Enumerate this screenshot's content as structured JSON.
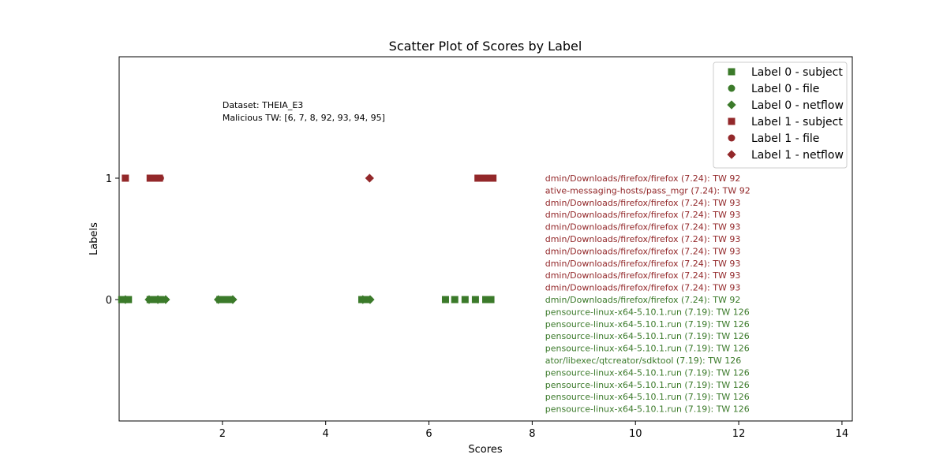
{
  "chart_data": {
    "type": "scatter",
    "title": "Scatter Plot of Scores by Label",
    "xlabel": "Scores",
    "ylabel": "Labels",
    "xlim": [
      0.0,
      14.2
    ],
    "ylim": [
      -1.0,
      2.0
    ],
    "xticks": [
      2,
      4,
      6,
      8,
      10,
      12,
      14
    ],
    "yticks": [
      0,
      1
    ],
    "grid": false,
    "legend_position": "top-right",
    "colors": {
      "label0": "#3b7a2a",
      "label1": "#93282a"
    },
    "annotations_header": [
      "Dataset: THEIA_E3",
      "Malicious TW: [6, 7, 8, 92, 93, 94, 95]"
    ],
    "series": [
      {
        "name": "Label 0 - subject",
        "marker": "square",
        "color": "#3b7a2a",
        "y": 0,
        "x": [
          0.05,
          0.12,
          0.18,
          0.6,
          0.7,
          0.8,
          1.95,
          2.05,
          2.15,
          4.7,
          4.8,
          6.32,
          6.5,
          6.7,
          6.9,
          7.1,
          7.2
        ]
      },
      {
        "name": "Label 0 - file",
        "marker": "circle",
        "color": "#3b7a2a",
        "y": 0,
        "x": [
          0.08,
          0.15,
          0.65,
          0.72,
          0.78,
          0.85,
          2.0,
          2.1,
          4.75,
          4.85
        ]
      },
      {
        "name": "Label 0 - netflow",
        "marker": "diamond",
        "color": "#3b7a2a",
        "y": 0,
        "x": [
          0.12,
          0.58,
          0.75,
          0.9,
          1.92,
          2.2,
          4.72,
          4.86
        ]
      },
      {
        "name": "Label 1 - subject",
        "marker": "square",
        "color": "#93282a",
        "y": 1,
        "x": [
          0.12,
          0.6,
          0.7,
          0.78,
          6.95,
          7.05,
          7.15,
          7.2,
          7.24
        ]
      },
      {
        "name": "Label 1 - file",
        "marker": "circle",
        "color": "#93282a",
        "y": 1,
        "x": [
          0.72,
          0.76,
          0.8,
          7.0,
          7.1
        ]
      },
      {
        "name": "Label 1 - netflow",
        "marker": "diamond",
        "color": "#93282a",
        "y": 1,
        "x": [
          4.85
        ]
      }
    ],
    "point_labels": [
      {
        "text": "dmin/Downloads/firefox/firefox (7.24): TW 92",
        "color": "#93282a"
      },
      {
        "text": "ative-messaging-hosts/pass_mgr (7.24): TW 92",
        "color": "#93282a"
      },
      {
        "text": "dmin/Downloads/firefox/firefox (7.24): TW 93",
        "color": "#93282a"
      },
      {
        "text": "dmin/Downloads/firefox/firefox (7.24): TW 93",
        "color": "#93282a"
      },
      {
        "text": "dmin/Downloads/firefox/firefox (7.24): TW 93",
        "color": "#93282a"
      },
      {
        "text": "dmin/Downloads/firefox/firefox (7.24): TW 93",
        "color": "#93282a"
      },
      {
        "text": "dmin/Downloads/firefox/firefox (7.24): TW 93",
        "color": "#93282a"
      },
      {
        "text": "dmin/Downloads/firefox/firefox (7.24): TW 93",
        "color": "#93282a"
      },
      {
        "text": "dmin/Downloads/firefox/firefox (7.24): TW 93",
        "color": "#93282a"
      },
      {
        "text": "dmin/Downloads/firefox/firefox (7.24): TW 93",
        "color": "#93282a"
      },
      {
        "text": "dmin/Downloads/firefox/firefox (7.24): TW 92",
        "color": "#3b7a2a"
      },
      {
        "text": "pensource-linux-x64-5.10.1.run (7.19): TW 126",
        "color": "#3b7a2a"
      },
      {
        "text": "pensource-linux-x64-5.10.1.run (7.19): TW 126",
        "color": "#3b7a2a"
      },
      {
        "text": "pensource-linux-x64-5.10.1.run (7.19): TW 126",
        "color": "#3b7a2a"
      },
      {
        "text": "pensource-linux-x64-5.10.1.run (7.19): TW 126",
        "color": "#3b7a2a"
      },
      {
        "text": "ator/libexec/qtcreator/sdktool (7.19): TW 126",
        "color": "#3b7a2a"
      },
      {
        "text": "pensource-linux-x64-5.10.1.run (7.19): TW 126",
        "color": "#3b7a2a"
      },
      {
        "text": "pensource-linux-x64-5.10.1.run (7.19): TW 126",
        "color": "#3b7a2a"
      },
      {
        "text": "pensource-linux-x64-5.10.1.run (7.19): TW 126",
        "color": "#3b7a2a"
      },
      {
        "text": "pensource-linux-x64-5.10.1.run (7.19): TW 126",
        "color": "#3b7a2a"
      }
    ]
  }
}
